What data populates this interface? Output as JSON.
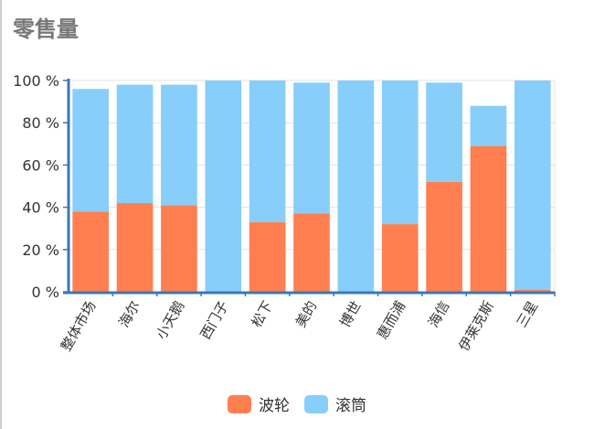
{
  "page": {
    "title": "零售量"
  },
  "colors": {
    "series_a": "#FF7F50",
    "series_b": "#87CEFA",
    "axis": "#3A78B5",
    "grid": "#E3E3E3",
    "tick_text": "#333333"
  },
  "chart_data": {
    "type": "bar",
    "stacked": true,
    "title": "零售量",
    "categories": [
      "整体市场",
      "海尔",
      "小天鹅",
      "西门子",
      "松下",
      "美的",
      "博世",
      "惠而浦",
      "海信",
      "伊莱克斯",
      "三星"
    ],
    "series": [
      {
        "name": "波轮",
        "values": [
          38,
          42,
          41,
          0,
          33,
          37,
          0,
          32,
          52,
          69,
          1
        ]
      },
      {
        "name": "滚筒",
        "values": [
          58,
          56,
          57,
          100,
          67,
          62,
          100,
          68,
          47,
          19,
          99
        ]
      }
    ],
    "y_tick_labels": [
      "0 %",
      "20 %",
      "40 %",
      "60 %",
      "80 %",
      "100 %"
    ],
    "ylim": [
      0,
      100
    ],
    "grid": true,
    "legend_position": "bottom"
  }
}
